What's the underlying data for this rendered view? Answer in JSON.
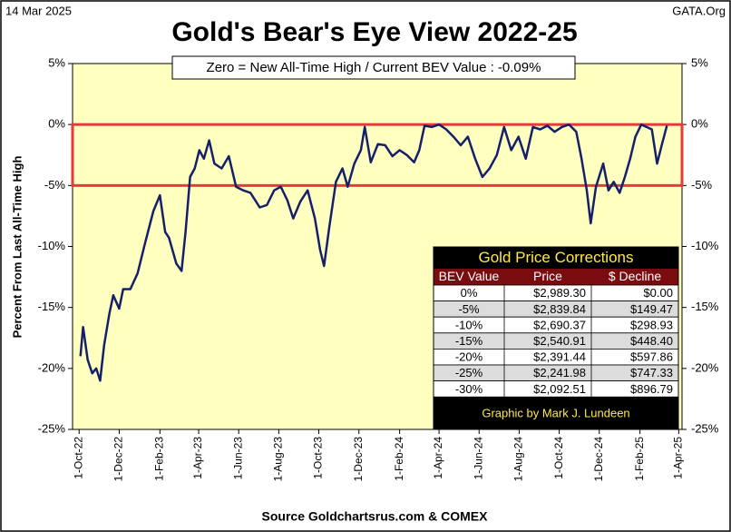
{
  "chart_data": {
    "type": "line",
    "date_label": "14 Mar 2025",
    "source_site": "GATA.Org",
    "title": "Gold's Bear's Eye View 2022-25",
    "annotation": "Zero = New All-Time High / Current  BEV Value : -0.09%",
    "ylabel": "Percent  From Last  All-Time  High",
    "xlabel": "Source Goldchartsrus.com & COMEX",
    "highlight_band": [
      0,
      -5
    ],
    "highlight_color": "#e8383a",
    "xlim": [
      "2022-09-21",
      "2025-04-06"
    ],
    "xticks": [
      {
        "value": "2022-10-01",
        "label": "1-Oct-22"
      },
      {
        "value": "2022-12-01",
        "label": "1-Dec-22"
      },
      {
        "value": "2023-02-01",
        "label": "1-Feb-23"
      },
      {
        "value": "2023-04-01",
        "label": "1-Apr-23"
      },
      {
        "value": "2023-06-01",
        "label": "1-Jun-23"
      },
      {
        "value": "2023-08-01",
        "label": "1-Aug-23"
      },
      {
        "value": "2023-10-01",
        "label": "1-Oct-23"
      },
      {
        "value": "2023-12-01",
        "label": "1-Dec-23"
      },
      {
        "value": "2024-02-01",
        "label": "1-Feb-24"
      },
      {
        "value": "2024-04-01",
        "label": "1-Apr-24"
      },
      {
        "value": "2024-06-01",
        "label": "1-Jun-24"
      },
      {
        "value": "2024-08-01",
        "label": "1-Aug-24"
      },
      {
        "value": "2024-10-01",
        "label": "1-Oct-24"
      },
      {
        "value": "2024-12-01",
        "label": "1-Dec-24"
      },
      {
        "value": "2025-02-01",
        "label": "1-Feb-25"
      },
      {
        "value": "2025-04-01",
        "label": "1-Apr-25"
      }
    ],
    "ylim": [
      -25,
      5
    ],
    "yticks": [
      {
        "value": 5,
        "label": "5%"
      },
      {
        "value": 0,
        "label": "0%"
      },
      {
        "value": -5,
        "label": "-5%"
      },
      {
        "value": -10,
        "label": "-10%"
      },
      {
        "value": -15,
        "label": "-15%"
      },
      {
        "value": -20,
        "label": "-20%"
      },
      {
        "value": -25,
        "label": "-25%"
      }
    ],
    "series": [
      {
        "name": "BEV",
        "color": "#14206a",
        "x": [
          "2022-10-03",
          "2022-10-07",
          "2022-10-14",
          "2022-10-21",
          "2022-10-27",
          "2022-11-02",
          "2022-11-08",
          "2022-11-16",
          "2022-11-22",
          "2022-12-01",
          "2022-12-07",
          "2022-12-18",
          "2022-12-29",
          "2023-01-09",
          "2023-01-22",
          "2023-02-01",
          "2023-02-09",
          "2023-02-15",
          "2023-02-26",
          "2023-03-06",
          "2023-03-12",
          "2023-03-19",
          "2023-03-26",
          "2023-04-02",
          "2023-04-09",
          "2023-04-17",
          "2023-04-25",
          "2023-05-06",
          "2023-05-17",
          "2023-05-28",
          "2023-06-08",
          "2023-06-19",
          "2023-07-03",
          "2023-07-14",
          "2023-07-25",
          "2023-08-04",
          "2023-08-14",
          "2023-08-23",
          "2023-09-03",
          "2023-09-14",
          "2023-09-25",
          "2023-10-03",
          "2023-10-09",
          "2023-10-17",
          "2023-10-27",
          "2023-11-06",
          "2023-11-14",
          "2023-11-24",
          "2023-12-04",
          "2023-12-10",
          "2023-12-19",
          "2023-12-30",
          "2024-01-10",
          "2024-01-21",
          "2024-02-01",
          "2024-02-12",
          "2024-02-23",
          "2024-03-02",
          "2024-03-10",
          "2024-03-21",
          "2024-04-01",
          "2024-04-12",
          "2024-04-23",
          "2024-05-04",
          "2024-05-15",
          "2024-05-26",
          "2024-06-06",
          "2024-06-17",
          "2024-06-28",
          "2024-07-09",
          "2024-07-20",
          "2024-07-31",
          "2024-08-11",
          "2024-08-22",
          "2024-09-02",
          "2024-09-13",
          "2024-09-24",
          "2024-10-05",
          "2024-10-16",
          "2024-10-27",
          "2024-11-04",
          "2024-11-12",
          "2024-11-18",
          "2024-11-26",
          "2024-12-07",
          "2024-12-15",
          "2024-12-23",
          "2025-01-01",
          "2025-01-09",
          "2025-01-17",
          "2025-01-25",
          "2025-02-03",
          "2025-02-11",
          "2025-02-19",
          "2025-02-27",
          "2025-03-06",
          "2025-03-14"
        ],
        "values": [
          -19.0,
          -16.6,
          -19.3,
          -20.4,
          -20.0,
          -21.0,
          -18.1,
          -15.5,
          -14.0,
          -15.1,
          -13.5,
          -13.5,
          -12.2,
          -9.8,
          -7.1,
          -5.8,
          -8.8,
          -9.3,
          -11.4,
          -12.0,
          -8.8,
          -4.3,
          -3.6,
          -2.1,
          -2.8,
          -1.3,
          -3.2,
          -3.6,
          -2.6,
          -5.1,
          -5.4,
          -5.6,
          -6.8,
          -6.6,
          -5.4,
          -5.1,
          -6.2,
          -7.7,
          -6.3,
          -5.4,
          -7.7,
          -10.3,
          -11.6,
          -8.4,
          -4.7,
          -3.6,
          -5.1,
          -3.2,
          -2.1,
          -0.2,
          -3.1,
          -1.6,
          -1.7,
          -2.6,
          -2.1,
          -2.5,
          -3.1,
          -2.1,
          -0.1,
          -0.2,
          0,
          -0.4,
          -1.0,
          -1.7,
          -1.0,
          -2.8,
          -4.3,
          -3.6,
          -2.5,
          -0.2,
          -2.1,
          -1.0,
          -2.8,
          -0.2,
          -0.4,
          -0.1,
          -0.6,
          -0.2,
          0,
          -0.6,
          -2.8,
          -5.4,
          -8.1,
          -5.1,
          -3.2,
          -5.4,
          -4.7,
          -5.6,
          -4.3,
          -2.8,
          -1.0,
          0,
          -0.2,
          -0.4,
          -3.2,
          -1.7,
          -0.09
        ]
      }
    ]
  },
  "table": {
    "title": "Gold Price Corrections",
    "header": [
      "BEV Value",
      "Price",
      "$ Decline"
    ],
    "rows": [
      [
        "0%",
        "$2,989.30",
        "$0.00"
      ],
      [
        "-5%",
        "$2,839.84",
        "$149.47"
      ],
      [
        "-10%",
        "$2,690.37",
        "$298.93"
      ],
      [
        "-15%",
        "$2,540.91",
        "$448.40"
      ],
      [
        "-20%",
        "$2,391.44",
        "$597.86"
      ],
      [
        "-25%",
        "$2,241.98",
        "$747.33"
      ],
      [
        "-30%",
        "$2,092.51",
        "$896.79"
      ]
    ],
    "footer": "Graphic by Mark J. Lundeen"
  }
}
